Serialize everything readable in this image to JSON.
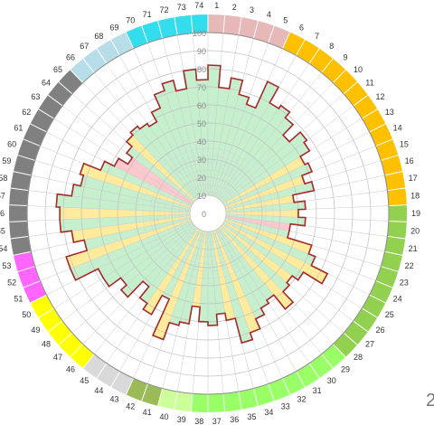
{
  "chart_data": {
    "type": "polar-bar",
    "categories": [
      "1",
      "2",
      "3",
      "4",
      "5",
      "6",
      "7",
      "8",
      "9",
      "10",
      "11",
      "12",
      "13",
      "14",
      "15",
      "16",
      "17",
      "18",
      "19",
      "20",
      "21",
      "22",
      "23",
      "24",
      "25",
      "26",
      "27",
      "28",
      "29",
      "30",
      "31",
      "32",
      "33",
      "34",
      "35",
      "36",
      "37",
      "38",
      "39",
      "40",
      "41",
      "42",
      "43",
      "44",
      "45",
      "46",
      "47",
      "48",
      "49",
      "50",
      "51",
      "52",
      "53",
      "54",
      "55",
      "56",
      "57",
      "58",
      "59",
      "60",
      "61",
      "62",
      "63",
      "64",
      "65",
      "66",
      "67",
      "68",
      "69",
      "70",
      "71",
      "72",
      "73",
      "74"
    ],
    "values": [
      82,
      70,
      76,
      68,
      64,
      80,
      70,
      72,
      68,
      60,
      68,
      66,
      60,
      62,
      56,
      60,
      48,
      54,
      50,
      54,
      46,
      46,
      60,
      64,
      74,
      62,
      58,
      60,
      68,
      58,
      60,
      64,
      70,
      74,
      60,
      56,
      62,
      60,
      52,
      62,
      64,
      74,
      52,
      64,
      60,
      52,
      64,
      60,
      68,
      68,
      82,
      82,
      70,
      76,
      82,
      82,
      84,
      76,
      72,
      74,
      64,
      58,
      52,
      56,
      60,
      62,
      60,
      58,
      64,
      72,
      76,
      70,
      80,
      74
    ],
    "segment_colors": [
      "#c6efce",
      "#c6efce",
      "#c6efce",
      "#c6efce",
      "#c6efce",
      "#c6efce",
      "#c6efce",
      "#c6efce",
      "#c6efce",
      "#c6efce",
      "#c6efce",
      "#c6efce",
      "#ffeb9c",
      "#c6efce",
      "#ffeb9c",
      "#c6efce",
      "#ffeb9c",
      "#c6efce",
      "#ffeb9c",
      "#c6efce",
      "#ffc7ce",
      "#c6efce",
      "#ffeb9c",
      "#c6efce",
      "#ffeb9c",
      "#c6efce",
      "#ffeb9c",
      "#c6efce",
      "#ffeb9c",
      "#c6efce",
      "#c6efce",
      "#c6efce",
      "#ffeb9c",
      "#c6efce",
      "#ffeb9c",
      "#c6efce",
      "#c6efce",
      "#c6efce",
      "#ffeb9c",
      "#c6efce",
      "#c6efce",
      "#ffeb9c",
      "#c6efce",
      "#ffeb9c",
      "#c6efce",
      "#c6efce",
      "#c6efce",
      "#c6efce",
      "#c6efce",
      "#c6efce",
      "#c6efce",
      "#ffeb9c",
      "#c6efce",
      "#ffeb9c",
      "#c6efce",
      "#ffeb9c",
      "#c6efce",
      "#c6efce",
      "#c6efce",
      "#ffeb9c",
      "#c6efce",
      "#ffc7ce",
      "#ffc7ce",
      "#c6efce",
      "#ffeb9c",
      "#c6efce",
      "#c6efce",
      "#c6efce",
      "#c6efce",
      "#c6efce",
      "#c6efce",
      "#c6efce",
      "#c6efce",
      "#c6efce"
    ],
    "outline_color": "#a52a2a",
    "radial_ticks": [
      "0",
      "10",
      "20",
      "30",
      "40",
      "50",
      "60",
      "70",
      "80",
      "90",
      "100"
    ],
    "rlim": [
      0,
      100
    ],
    "hole": 10,
    "grid": true,
    "legend": "none",
    "direction": "clockwise",
    "start": "top",
    "outer_ring": [
      {
        "from": 1,
        "to": 6,
        "color": "#e6b8b7"
      },
      {
        "from": 6,
        "to": 19,
        "color": "#ffc000"
      },
      {
        "from": 19,
        "to": 29,
        "color": "#92d050"
      },
      {
        "from": 29,
        "to": 39,
        "color": "#99ff66"
      },
      {
        "from": 39,
        "to": 41,
        "color": "#ccff99"
      },
      {
        "from": 41,
        "to": 43,
        "color": "#9bbb59"
      },
      {
        "from": 43,
        "to": 46,
        "color": "#d9d9d9"
      },
      {
        "from": 46,
        "to": 51,
        "color": "#ffff00"
      },
      {
        "from": 51,
        "to": 54,
        "color": "#ff66ff"
      },
      {
        "from": 54,
        "to": 66,
        "color": "#808080"
      },
      {
        "from": 66,
        "to": 70,
        "color": "#b7dee8"
      },
      {
        "from": 70,
        "to": 75,
        "color": "#33ddee"
      }
    ]
  },
  "corner_text": "2"
}
